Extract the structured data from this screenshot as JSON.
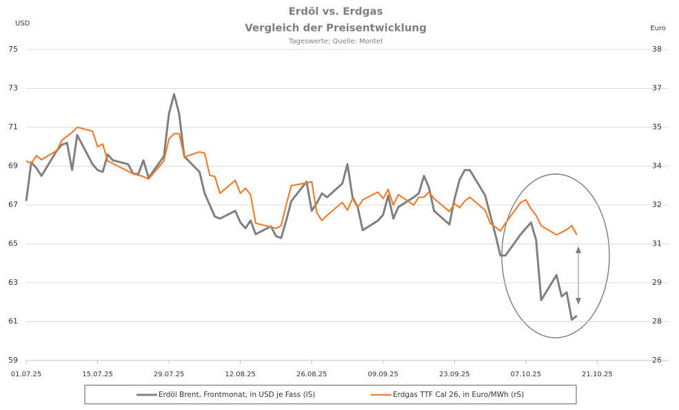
{
  "chart_data": {
    "type": "line",
    "title": "Erdöl vs. Erdgas",
    "subtitle": "Vergleich der Preisentwicklung",
    "source": "Tageswerte; Quelle: Montel",
    "y_label": "USD",
    "y2_label": "Euro",
    "x": [
      "2025-07-01",
      "2025-07-02",
      "2025-07-03",
      "2025-07-04",
      "2025-07-07",
      "2025-07-08",
      "2025-07-09",
      "2025-07-10",
      "2025-07-11",
      "2025-07-14",
      "2025-07-15",
      "2025-07-16",
      "2025-07-17",
      "2025-07-18",
      "2025-07-21",
      "2025-07-22",
      "2025-07-23",
      "2025-07-24",
      "2025-07-25",
      "2025-07-28",
      "2025-07-29",
      "2025-07-30",
      "2025-07-31",
      "2025-08-01",
      "2025-08-04",
      "2025-08-05",
      "2025-08-06",
      "2025-08-07",
      "2025-08-08",
      "2025-08-11",
      "2025-08-12",
      "2025-08-13",
      "2025-08-14",
      "2025-08-15",
      "2025-08-18",
      "2025-08-19",
      "2025-08-20",
      "2025-08-21",
      "2025-08-22",
      "2025-08-25",
      "2025-08-26",
      "2025-08-27",
      "2025-08-28",
      "2025-08-29",
      "2025-09-01",
      "2025-09-02",
      "2025-09-03",
      "2025-09-04",
      "2025-09-05",
      "2025-09-08",
      "2025-09-09",
      "2025-09-10",
      "2025-09-11",
      "2025-09-12",
      "2025-09-15",
      "2025-09-16",
      "2025-09-17",
      "2025-09-18",
      "2025-09-19",
      "2025-09-22",
      "2025-09-23",
      "2025-09-24",
      "2025-09-25",
      "2025-09-26",
      "2025-09-29",
      "2025-09-30",
      "2025-10-01",
      "2025-10-02",
      "2025-10-03",
      "2025-10-06",
      "2025-10-07",
      "2025-10-08",
      "2025-10-09",
      "2025-10-10",
      "2025-10-13",
      "2025-10-14",
      "2025-10-15",
      "2025-10-16",
      "2025-10-17"
    ],
    "series": [
      {
        "name": "Erdöl Brent, Frontmonat, in USD je Fass (lS)",
        "color": "#7f7f7f",
        "values": [
          67.2,
          69.2,
          68.9,
          68.5,
          69.8,
          70.1,
          70.2,
          68.8,
          70.6,
          69.1,
          68.8,
          68.7,
          69.6,
          69.3,
          69.1,
          68.6,
          68.6,
          69.3,
          68.4,
          69.5,
          71.7,
          72.7,
          71.7,
          69.5,
          68.7,
          67.6,
          67.0,
          66.4,
          66.3,
          66.7,
          66.1,
          65.8,
          66.2,
          65.5,
          65.9,
          65.4,
          65.3,
          66.2,
          67.2,
          68.2,
          66.7,
          67.1,
          67.6,
          67.4,
          68.1,
          69.1,
          67.4,
          66.9,
          65.7,
          66.2,
          66.5,
          67.5,
          66.3,
          66.9,
          67.4,
          67.6,
          68.5,
          67.9,
          66.7,
          66.0,
          67.3,
          68.3,
          68.8,
          68.8,
          67.5,
          66.5,
          65.5,
          64.4,
          64.4,
          65.5,
          65.8,
          66.1,
          65.2,
          62.1,
          63.4,
          62.3,
          62.5,
          61.1,
          61.3
        ]
      },
      {
        "name": "Erdgas TTF Cal 26, in Euro/MWh (rS)",
        "color": "#ed7d31",
        "axis": "y2",
        "values": [
          33.7,
          33.6,
          33.9,
          33.75,
          34.1,
          34.5,
          34.65,
          34.8,
          35.0,
          34.85,
          34.25,
          34.35,
          33.7,
          33.6,
          33.3,
          33.2,
          33.15,
          33.1,
          33.0,
          33.7,
          34.55,
          34.75,
          34.75,
          33.85,
          34.05,
          34.0,
          33.15,
          33.1,
          32.45,
          32.95,
          32.45,
          32.65,
          32.4,
          31.3,
          31.15,
          31.1,
          31.2,
          32.0,
          32.75,
          32.85,
          32.9,
          31.7,
          31.4,
          31.6,
          32.1,
          31.8,
          32.25,
          31.9,
          32.2,
          32.5,
          32.25,
          32.6,
          32.0,
          32.4,
          32.0,
          32.3,
          32.3,
          32.5,
          32.25,
          31.75,
          32.05,
          31.9,
          32.15,
          32.3,
          31.8,
          31.3,
          31.15,
          31.0,
          31.3,
          32.1,
          32.2,
          31.85,
          31.6,
          31.2,
          30.85,
          30.95,
          31.05,
          31.2,
          30.85
        ]
      }
    ],
    "xlim": [
      "2025-07-01",
      "2025-11-04"
    ],
    "xticks": [
      {
        "value": "2025-07-01",
        "label": "01.07.25"
      },
      {
        "value": "2025-07-15",
        "label": "15.07.25"
      },
      {
        "value": "2025-07-29",
        "label": "29.07.25"
      },
      {
        "value": "2025-08-12",
        "label": "12.08.25"
      },
      {
        "value": "2025-08-26",
        "label": "26.08.25"
      },
      {
        "value": "2025-09-09",
        "label": "09.09.25"
      },
      {
        "value": "2025-09-23",
        "label": "23.09.25"
      },
      {
        "value": "2025-10-07",
        "label": "07.10.25"
      },
      {
        "value": "2025-10-21",
        "label": "21.10.25"
      }
    ],
    "ylim": [
      59,
      75
    ],
    "yticks": [
      59,
      61,
      63,
      65,
      67,
      69,
      71,
      73,
      75
    ],
    "y2lim": [
      26,
      38
    ],
    "y2ticks": [
      26,
      {
        "value": 27.5,
        "label": "28"
      },
      29,
      {
        "value": 30.5,
        "label": "31"
      },
      32,
      {
        "value": 33.5,
        "label": "34"
      },
      35,
      {
        "value": 36.5,
        "label": "37"
      },
      38
    ],
    "grid": true
  }
}
